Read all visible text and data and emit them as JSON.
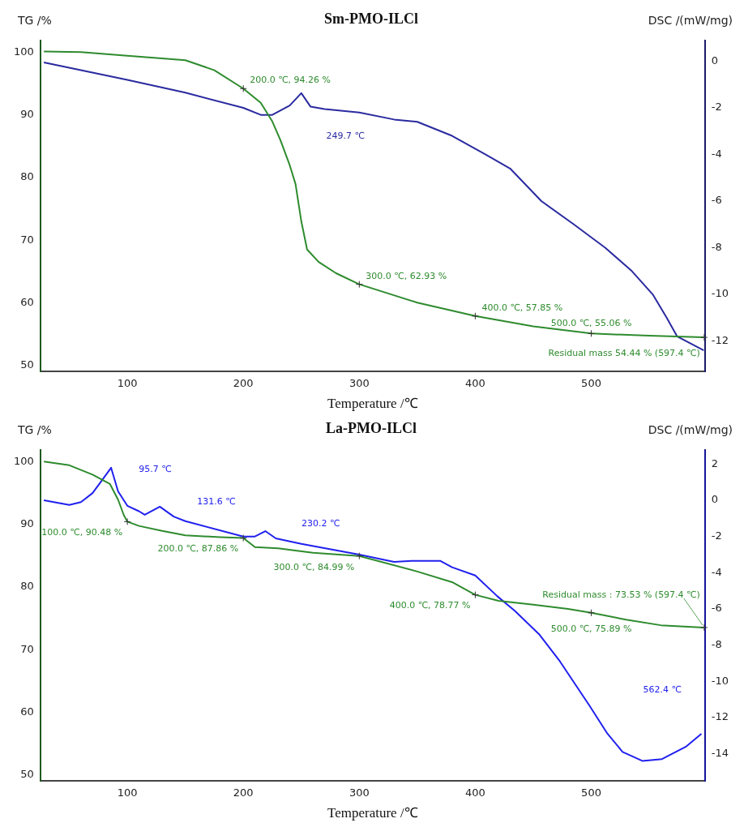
{
  "chart_data": [
    {
      "type": "line",
      "title": "Sm-PMO-ILCl",
      "xlabel": "Temperature /℃",
      "ylabel": "TG /%",
      "y2label": "DSC /(mW/mg)",
      "xlim": [
        25,
        598
      ],
      "xticks": [
        100,
        200,
        300,
        400,
        500
      ],
      "ylim": [
        49,
        102
      ],
      "yticks": [
        50,
        60,
        70,
        80,
        90,
        100
      ],
      "y2lim": [
        -13.3,
        0.9
      ],
      "y2ticks": [
        -12,
        -10,
        -8,
        -6,
        -4,
        -2,
        0
      ],
      "series": [
        {
          "color": "#2e8b2e",
          "x": [
            28,
            60,
            100,
            150,
            175,
            200,
            215,
            225,
            232,
            240,
            245,
            250,
            255,
            265,
            280,
            300,
            350,
            400,
            450,
            500,
            550,
            597
          ],
          "values": [
            100.2,
            100.1,
            99.5,
            98.8,
            97.2,
            94.26,
            92,
            89,
            86,
            82,
            79,
            73,
            68.5,
            66.5,
            64.7,
            62.93,
            60,
            57.85,
            56.2,
            55.06,
            54.7,
            54.44
          ]
        },
        {
          "color": "#2a2aa0",
          "axis": "y2",
          "x": [
            28,
            100,
            150,
            200,
            215,
            225,
            240,
            250,
            258,
            270,
            300,
            330,
            350,
            380,
            409,
            430,
            457,
            485,
            512,
            535,
            553,
            565,
            574,
            597
          ],
          "values": [
            -0.05,
            -0.8,
            -1.35,
            -2.0,
            -2.3,
            -2.3,
            -1.9,
            -1.37,
            -1.95,
            -2.05,
            -2.2,
            -2.5,
            -2.6,
            -3.2,
            -4.0,
            -4.6,
            -6.0,
            -7.0,
            -8.0,
            -9.0,
            -10.0,
            -11.0,
            -11.8,
            -12.4
          ]
        }
      ],
      "annotations": [
        {
          "text": "200.0 ℃, 94.26 %",
          "x": 200,
          "y": 94.26
        },
        "249.7 ℃",
        {
          "text": "300.0 ℃, 62.93 %",
          "x": 300,
          "y": 62.93
        },
        {
          "text": "400.0 ℃, 57.85 %",
          "x": 400,
          "y": 57.85
        },
        {
          "text": "500.0 ℃, 55.06 %",
          "x": 500,
          "y": 55.06
        },
        {
          "text": "Residual mass 54.44 % (597.4 ℃)",
          "x": 597.4,
          "y": 54.44
        }
      ]
    },
    {
      "type": "line",
      "title": "La-PMO-ILCl",
      "xlabel": "Temperature /℃",
      "ylabel": "TG /%",
      "y2label": "DSC /(mW/mg)",
      "xlim": [
        25,
        598
      ],
      "xticks": [
        100,
        200,
        300,
        400,
        500
      ],
      "ylim": [
        49,
        102
      ],
      "yticks": [
        50,
        60,
        70,
        80,
        90,
        100
      ],
      "y2lim": [
        -15.5,
        2.8
      ],
      "y2ticks": [
        -14,
        -12,
        -10,
        -8,
        -6,
        -4,
        -2,
        0,
        2
      ],
      "series": [
        {
          "color": "#2e8b2e",
          "x": [
            28,
            50,
            70,
            85,
            92,
            97,
            100,
            110,
            130,
            150,
            180,
            200,
            210,
            230,
            260,
            300,
            350,
            380,
            400,
            420,
            450,
            480,
            500,
            530,
            560,
            597
          ],
          "values": [
            100.1,
            99.5,
            98,
            96.5,
            94,
            91.5,
            90.48,
            89.8,
            89,
            88.3,
            88,
            87.86,
            86.4,
            86.2,
            85.5,
            84.99,
            82.5,
            80.8,
            78.77,
            77.8,
            77.2,
            76.5,
            75.89,
            74.8,
            73.9,
            73.53
          ]
        },
        {
          "color": "#2020ee",
          "axis": "y2",
          "x": [
            28,
            50,
            60,
            70,
            78,
            86,
            92,
            100,
            110,
            115,
            128,
            140,
            150,
            200,
            210,
            219,
            228,
            250,
            300,
            330,
            345,
            370,
            380,
            400,
            419,
            434,
            455,
            473,
            498,
            514,
            527,
            544,
            561,
            582,
            595
          ],
          "values": [
            0,
            -0.25,
            -0.1,
            0.4,
            1.1,
            1.8,
            0.5,
            -0.3,
            -0.6,
            -0.8,
            -0.35,
            -0.9,
            -1.15,
            -2.0,
            -2.0,
            -1.7,
            -2.1,
            -2.4,
            -3.0,
            -3.4,
            -3.35,
            -3.35,
            -3.7,
            -4.15,
            -5.3,
            -6.1,
            -7.4,
            -8.9,
            -11.3,
            -12.9,
            -13.9,
            -14.4,
            -14.3,
            -13.6,
            -12.9
          ]
        }
      ],
      "annotations": [
        "95.7 ℃",
        "131.6 ℃",
        "230.2 ℃",
        "562.4 ℃",
        {
          "text": "100.0 ℃, 90.48 %",
          "x": 100,
          "y": 90.48
        },
        {
          "text": "200.0 ℃, 87.86 %",
          "x": 200,
          "y": 87.86
        },
        {
          "text": "300.0 ℃, 84.99 %",
          "x": 300,
          "y": 84.99
        },
        {
          "text": "400.0 ℃, 78.77 %",
          "x": 400,
          "y": 78.77
        },
        {
          "text": "500.0 ℃, 75.89 %",
          "x": 500,
          "y": 75.89
        },
        {
          "text": "Residual mass : 73.53 % (597.4 ℃)",
          "x": 597.4,
          "y": 73.53
        }
      ]
    }
  ]
}
